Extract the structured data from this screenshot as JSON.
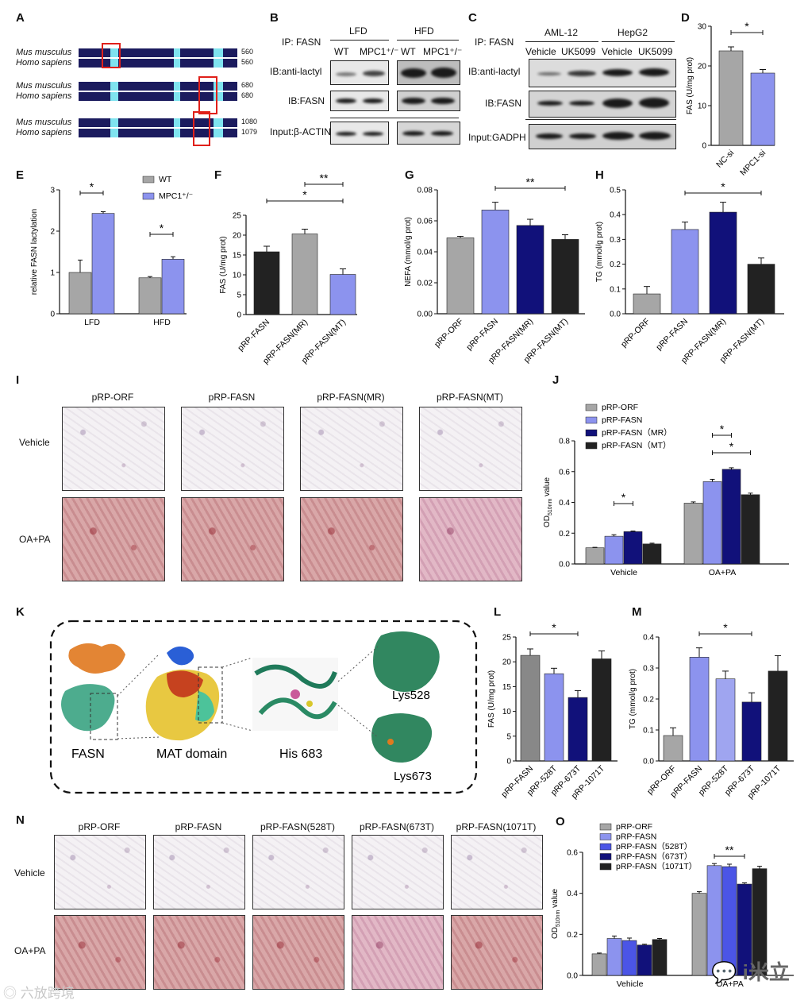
{
  "panels": {
    "A": {
      "label": "A",
      "rows": [
        {
          "species": [
            "Mus musculus",
            "Homo sapiens"
          ],
          "pos": [
            "560",
            "560"
          ]
        },
        {
          "species": [
            "Mus musculus",
            "Homo sapiens"
          ],
          "pos": [
            "680",
            "680"
          ]
        },
        {
          "species": [
            "Mus musculus",
            "Homo sapiens"
          ],
          "pos": [
            "1080",
            "1079"
          ]
        }
      ]
    },
    "B": {
      "label": "B",
      "ip": "IP: FASN",
      "group1": "LFD",
      "group2": "HFD",
      "lanes": [
        "WT",
        "MPC1⁺/⁻",
        "WT",
        "MPC1⁺/⁻"
      ],
      "blots": [
        "IB:anti-lactyl",
        "IB:FASN",
        "Input:β-ACTIN"
      ]
    },
    "C": {
      "label": "C",
      "ip": "IP: FASN",
      "group1": "AML-12",
      "group2": "HepG2",
      "lanes": [
        "Vehicle",
        "UK5099",
        "Vehicle",
        "UK5099"
      ],
      "blots": [
        "IB:anti-lactyl",
        "IB:FASN",
        "Input:GADPH"
      ]
    },
    "K": {
      "label": "K",
      "structures": [
        "FASN",
        "MAT domain",
        "His 683",
        "Lys528",
        "Lys673"
      ]
    },
    "I": {
      "label": "I",
      "cols": [
        "pRP-ORF",
        "pRP-FASN",
        "pRP-FASN(MR)",
        "pRP-FASN(MT)"
      ],
      "rows": [
        "Vehicle",
        "OA+PA"
      ]
    },
    "N": {
      "label": "N",
      "cols": [
        "pRP-ORF",
        "pRP-FASN",
        "pRP-FASN(528T)",
        "pRP-FASN(673T)",
        "pRP-FASN(1071T)"
      ],
      "rows": [
        "Vehicle",
        "OA+PA"
      ]
    },
    "watermark": {
      "left": "六放跨境",
      "right": "i米立"
    }
  },
  "chart_data": [
    {
      "id": "D",
      "type": "bar",
      "ylabel": "FAS (U/mg prot)",
      "ylim": [
        0,
        30
      ],
      "yticks": [
        0,
        10,
        20,
        30
      ],
      "categories": [
        "NC-si",
        "MPC1-si"
      ],
      "values": [
        23.8,
        18.2
      ],
      "errors": [
        1.0,
        0.9
      ],
      "colors": [
        "#a6a6a6",
        "#8c93ee"
      ],
      "sig": [
        {
          "from": 0,
          "to": 1,
          "label": "*"
        }
      ]
    },
    {
      "id": "E",
      "type": "bar",
      "ylabel": "relative FASN lactylation",
      "ylim": [
        0,
        3
      ],
      "yticks": [
        0,
        1,
        2,
        3
      ],
      "categories": [
        "LFD",
        "HFD"
      ],
      "series": [
        {
          "name": "WT",
          "values": [
            1.0,
            0.87
          ],
          "errors": [
            0.3,
            0.03
          ],
          "color": "#a6a6a6"
        },
        {
          "name": "MPC1⁺/⁻",
          "values": [
            2.43,
            1.32
          ],
          "errors": [
            0.04,
            0.06
          ],
          "color": "#8c93ee"
        }
      ],
      "sig": [
        {
          "label": "*"
        },
        {
          "label": "*"
        }
      ]
    },
    {
      "id": "F",
      "type": "bar",
      "ylabel": "FAS (U/mg prot)",
      "ylim": [
        0,
        25
      ],
      "yticks": [
        0,
        5,
        10,
        15,
        20,
        25
      ],
      "categories": [
        "pRP-FASN",
        "pRP-FASN(MR)",
        "pRP-FASN(MT)"
      ],
      "values": [
        15.8,
        20.3,
        10.1
      ],
      "errors": [
        1.4,
        1.2,
        1.4
      ],
      "colors": [
        "#222222",
        "#a6a6a6",
        "#8c93ee"
      ],
      "sig": [
        {
          "from": 1,
          "to": 2,
          "label": "**"
        },
        {
          "from": 0,
          "to": 2,
          "label": "*"
        }
      ]
    },
    {
      "id": "G",
      "type": "bar",
      "ylabel": "NEFA (mmol/g prot)",
      "ylim": [
        0,
        0.08
      ],
      "yticks": [
        0.0,
        0.02,
        0.04,
        0.06,
        0.08
      ],
      "categories": [
        "pRP-ORF",
        "pRP-FASN",
        "pRP-FASN(MR)",
        "pRP-FASN(MT)"
      ],
      "values": [
        0.049,
        0.067,
        0.057,
        0.048
      ],
      "errors": [
        0.001,
        0.005,
        0.004,
        0.003
      ],
      "colors": [
        "#a6a6a6",
        "#8c93ee",
        "#11117a",
        "#222222"
      ],
      "sig": [
        {
          "from": 1,
          "to": 3,
          "label": "**"
        }
      ]
    },
    {
      "id": "H",
      "type": "bar",
      "ylabel": "TG (mmol/g prot)",
      "ylim": [
        0,
        0.5
      ],
      "yticks": [
        0.0,
        0.1,
        0.2,
        0.3,
        0.4,
        0.5
      ],
      "categories": [
        "pRP-ORF",
        "pRP-FASN",
        "pRP-FASN(MR)",
        "pRP-FASN(MT)"
      ],
      "values": [
        0.08,
        0.34,
        0.41,
        0.2
      ],
      "errors": [
        0.03,
        0.03,
        0.04,
        0.025
      ],
      "colors": [
        "#a6a6a6",
        "#8c93ee",
        "#11117a",
        "#222222"
      ],
      "sig": [
        {
          "from": 1,
          "to": 3,
          "label": "*"
        }
      ]
    },
    {
      "id": "J",
      "type": "bar",
      "ylabel": "OD510nm value",
      "ylim": [
        0,
        0.8
      ],
      "yticks": [
        0.0,
        0.2,
        0.4,
        0.6,
        0.8
      ],
      "categories": [
        "Vehicle",
        "OA+PA"
      ],
      "series": [
        {
          "name": "pRP-ORF",
          "values": [
            0.105,
            0.395
          ],
          "errors": [
            0.003,
            0.008
          ],
          "color": "#a6a6a6"
        },
        {
          "name": "pRP-FASN",
          "values": [
            0.18,
            0.535
          ],
          "errors": [
            0.01,
            0.015
          ],
          "color": "#8c93ee"
        },
        {
          "name": "pRP-FASN（MR）",
          "values": [
            0.21,
            0.615
          ],
          "errors": [
            0.004,
            0.01
          ],
          "color": "#11117a"
        },
        {
          "name": "pRP-FASN（MT）",
          "values": [
            0.13,
            0.45
          ],
          "errors": [
            0.005,
            0.01
          ],
          "color": "#222222"
        }
      ],
      "sig": [
        {
          "label": "*"
        },
        {
          "label": "*"
        },
        {
          "label": "*"
        }
      ]
    },
    {
      "id": "L",
      "type": "bar",
      "ylabel": "FAS (U/mg prot)",
      "ylim": [
        0,
        25
      ],
      "yticks": [
        0,
        5,
        10,
        15,
        20,
        25
      ],
      "categories": [
        "pRP-FASN",
        "pRP-528T",
        "pRP-673T",
        "pRP-1071T"
      ],
      "values": [
        21.3,
        17.6,
        12.8,
        20.6
      ],
      "errors": [
        1.3,
        1.1,
        1.4,
        1.6
      ],
      "colors": [
        "#888888",
        "#8c93ee",
        "#11117a",
        "#222222"
      ],
      "sig": [
        {
          "from": 0,
          "to": 2,
          "label": "*"
        }
      ]
    },
    {
      "id": "M",
      "type": "bar",
      "ylabel": "TG (mmol/g prot)",
      "ylim": [
        0,
        0.4
      ],
      "yticks": [
        0.0,
        0.1,
        0.2,
        0.3,
        0.4
      ],
      "categories": [
        "pRP-ORF",
        "pRP-FASN",
        "pRP-528T",
        "pRP-673T",
        "pRP-1071T"
      ],
      "values": [
        0.082,
        0.335,
        0.265,
        0.19,
        0.29
      ],
      "errors": [
        0.025,
        0.03,
        0.025,
        0.03,
        0.05
      ],
      "colors": [
        "#a6a6a6",
        "#8c93ee",
        "#9fa5f0",
        "#11117a",
        "#222222"
      ],
      "sig": [
        {
          "from": 1,
          "to": 3,
          "label": "*"
        }
      ]
    },
    {
      "id": "O",
      "type": "bar",
      "ylabel": "OD510nm value",
      "ylim": [
        0,
        0.6
      ],
      "yticks": [
        0.0,
        0.2,
        0.4,
        0.6
      ],
      "categories": [
        "Vehicle",
        "OA+PA"
      ],
      "series": [
        {
          "name": "pRP-ORF",
          "values": [
            0.105,
            0.4
          ],
          "errors": [
            0.004,
            0.008
          ],
          "color": "#a6a6a6"
        },
        {
          "name": "pRP-FASN",
          "values": [
            0.18,
            0.535
          ],
          "errors": [
            0.012,
            0.01
          ],
          "color": "#8c93ee"
        },
        {
          "name": "pRP-FASN（528T）",
          "values": [
            0.17,
            0.53
          ],
          "errors": [
            0.012,
            0.012
          ],
          "color": "#4b55e6"
        },
        {
          "name": "pRP-FASN（673T）",
          "values": [
            0.148,
            0.445
          ],
          "errors": [
            0.004,
            0.006
          ],
          "color": "#11117a"
        },
        {
          "name": "pRP-FASN（1071T）",
          "values": [
            0.175,
            0.52
          ],
          "errors": [
            0.005,
            0.012
          ],
          "color": "#222222"
        }
      ],
      "sig": [
        {
          "label": "**"
        }
      ]
    }
  ]
}
